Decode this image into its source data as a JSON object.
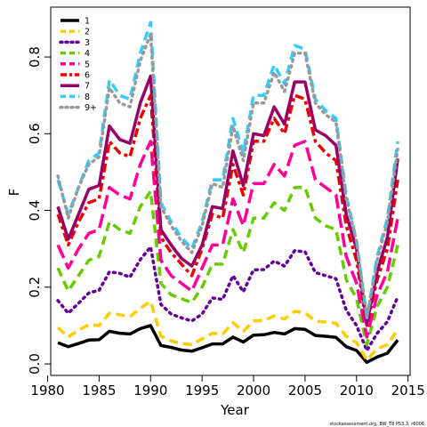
{
  "chart_data": {
    "type": "line",
    "xlabel": "Year",
    "ylabel": "F",
    "xlim": [
      1980.3,
      2015.2
    ],
    "ylim": [
      -0.03,
      0.93
    ],
    "grid": false,
    "legend_position": "top-left",
    "x_ticks": [
      1980,
      1985,
      1990,
      1995,
      2000,
      2005,
      2010,
      2015
    ],
    "y_ticks": [
      0.0,
      0.2,
      0.4,
      0.6,
      0.8
    ],
    "y_tick_labels": [
      "0.0",
      "0.2",
      "0.4",
      "0.6",
      "0.8"
    ],
    "x": [
      1981,
      1982,
      1983,
      1984,
      1985,
      1986,
      1987,
      1988,
      1989,
      1990,
      1991,
      1992,
      1993,
      1994,
      1995,
      1996,
      1997,
      1998,
      1999,
      2000,
      2001,
      2002,
      2003,
      2004,
      2005,
      2006,
      2007,
      2008,
      2009,
      2010,
      2011,
      2012,
      2013,
      2014
    ],
    "series": [
      {
        "name": "1",
        "color": "#000000",
        "dash": "solid",
        "values": [
          0.055,
          0.045,
          0.053,
          0.062,
          0.063,
          0.085,
          0.08,
          0.078,
          0.092,
          0.1,
          0.048,
          0.043,
          0.036,
          0.033,
          0.042,
          0.052,
          0.052,
          0.07,
          0.057,
          0.075,
          0.076,
          0.082,
          0.078,
          0.092,
          0.09,
          0.074,
          0.072,
          0.069,
          0.045,
          0.035,
          0.004,
          0.018,
          0.028,
          0.062
        ]
      },
      {
        "name": "2",
        "color": "#ffcc00",
        "dash": "dash",
        "values": [
          0.095,
          0.07,
          0.088,
          0.102,
          0.1,
          0.132,
          0.128,
          0.123,
          0.145,
          0.163,
          0.072,
          0.06,
          0.053,
          0.05,
          0.065,
          0.08,
          0.078,
          0.107,
          0.085,
          0.112,
          0.113,
          0.125,
          0.117,
          0.137,
          0.133,
          0.112,
          0.109,
          0.106,
          0.072,
          0.055,
          0.01,
          0.04,
          0.05,
          0.09
        ]
      },
      {
        "name": "3",
        "color": "#660099",
        "dash": "dot",
        "values": [
          0.165,
          0.132,
          0.158,
          0.185,
          0.192,
          0.24,
          0.236,
          0.226,
          0.272,
          0.305,
          0.155,
          0.13,
          0.12,
          0.112,
          0.13,
          0.172,
          0.168,
          0.23,
          0.188,
          0.245,
          0.246,
          0.268,
          0.255,
          0.295,
          0.292,
          0.238,
          0.23,
          0.222,
          0.14,
          0.1,
          0.035,
          0.08,
          0.11,
          0.175
        ]
      },
      {
        "name": "4",
        "color": "#66cc00",
        "dash": "dash",
        "values": [
          0.25,
          0.19,
          0.23,
          0.27,
          0.28,
          0.37,
          0.35,
          0.34,
          0.41,
          0.45,
          0.21,
          0.18,
          0.17,
          0.16,
          0.2,
          0.26,
          0.26,
          0.35,
          0.29,
          0.38,
          0.38,
          0.42,
          0.4,
          0.46,
          0.46,
          0.38,
          0.36,
          0.35,
          0.22,
          0.17,
          0.05,
          0.15,
          0.2,
          0.31
        ]
      },
      {
        "name": "5",
        "color": "#ff0099",
        "dash": "longdash",
        "values": [
          0.31,
          0.25,
          0.3,
          0.34,
          0.35,
          0.46,
          0.44,
          0.43,
          0.52,
          0.58,
          0.27,
          0.23,
          0.21,
          0.19,
          0.25,
          0.31,
          0.31,
          0.43,
          0.36,
          0.47,
          0.47,
          0.52,
          0.49,
          0.57,
          0.58,
          0.48,
          0.46,
          0.44,
          0.28,
          0.21,
          0.07,
          0.18,
          0.24,
          0.38
        ]
      },
      {
        "name": "6",
        "color": "#ee0000",
        "dash": "twodash",
        "values": [
          0.39,
          0.31,
          0.37,
          0.42,
          0.43,
          0.58,
          0.55,
          0.54,
          0.64,
          0.7,
          0.33,
          0.29,
          0.26,
          0.23,
          0.3,
          0.39,
          0.38,
          0.52,
          0.44,
          0.58,
          0.58,
          0.64,
          0.6,
          0.7,
          0.69,
          0.58,
          0.55,
          0.53,
          0.36,
          0.27,
          0.1,
          0.22,
          0.3,
          0.48
        ]
      },
      {
        "name": "7",
        "color": "#990066",
        "dash": "solid",
        "values": [
          0.41,
          0.325,
          0.39,
          0.455,
          0.465,
          0.62,
          0.585,
          0.575,
          0.68,
          0.75,
          0.35,
          0.31,
          0.275,
          0.255,
          0.31,
          0.41,
          0.405,
          0.555,
          0.465,
          0.6,
          0.595,
          0.67,
          0.625,
          0.735,
          0.735,
          0.61,
          0.595,
          0.57,
          0.39,
          0.3,
          0.105,
          0.24,
          0.33,
          0.535
        ]
      },
      {
        "name": "8",
        "color": "#33ccff",
        "dash": "dash",
        "values": [
          0.48,
          0.39,
          0.46,
          0.53,
          0.55,
          0.74,
          0.7,
          0.69,
          0.81,
          0.89,
          0.42,
          0.37,
          0.33,
          0.3,
          0.37,
          0.48,
          0.48,
          0.64,
          0.55,
          0.7,
          0.7,
          0.78,
          0.73,
          0.83,
          0.82,
          0.69,
          0.66,
          0.64,
          0.44,
          0.32,
          0.12,
          0.28,
          0.38,
          0.58
        ]
      },
      {
        "name": "9+",
        "color": "#999999",
        "dash": "dot",
        "values": [
          0.49,
          0.38,
          0.46,
          0.52,
          0.54,
          0.72,
          0.68,
          0.67,
          0.79,
          0.86,
          0.41,
          0.36,
          0.32,
          0.29,
          0.36,
          0.47,
          0.46,
          0.62,
          0.53,
          0.68,
          0.68,
          0.76,
          0.71,
          0.81,
          0.81,
          0.68,
          0.65,
          0.63,
          0.43,
          0.32,
          0.12,
          0.27,
          0.37,
          0.56
        ]
      }
    ]
  },
  "credit": "stockassessment.org, BW_T8 P53.3, r6006"
}
